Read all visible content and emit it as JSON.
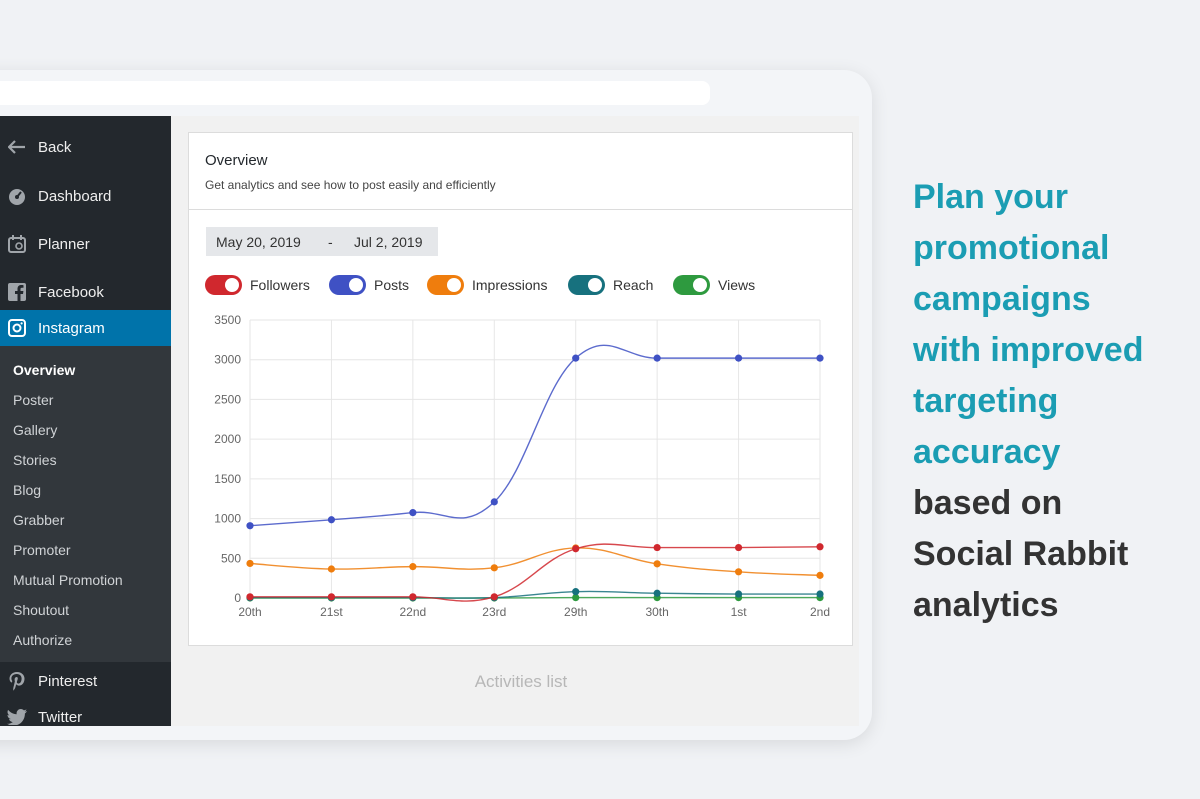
{
  "sidebar": {
    "back": "Back",
    "dashboard": "Dashboard",
    "planner": "Planner",
    "facebook": "Facebook",
    "instagram": "Instagram",
    "submenu": [
      "Overview",
      "Poster",
      "Gallery",
      "Stories",
      "Blog",
      "Grabber",
      "Promoter",
      "Mutual Promotion",
      "Shoutout",
      "Authorize"
    ],
    "pinterest": "Pinterest",
    "twitter": "Twitter"
  },
  "overview": {
    "title": "Overview",
    "subtitle": "Get analytics and see how to post easily and efficiently",
    "date_from": "May 20, 2019",
    "date_sep": "-",
    "date_to": "Jul 2, 2019"
  },
  "toggles": [
    {
      "label": "Followers",
      "color": "#d0282e",
      "on": true
    },
    {
      "label": "Posts",
      "color": "#3f51c4",
      "on": true
    },
    {
      "label": "Impressions",
      "color": "#ef7d0d",
      "on": true
    },
    {
      "label": "Reach",
      "color": "#17717e",
      "on": true
    },
    {
      "label": "Views",
      "color": "#2e9a3f",
      "on": true
    }
  ],
  "chart_data": {
    "type": "line",
    "x": [
      "20th",
      "21st",
      "22nd",
      "23rd",
      "29th",
      "30th",
      "1st",
      "2nd"
    ],
    "yticks": [
      0,
      500,
      1000,
      1500,
      2000,
      2500,
      3000,
      3500
    ],
    "ylim": [
      0,
      3500
    ],
    "grid": true,
    "series": [
      {
        "name": "Followers",
        "color": "#d0282e",
        "values": [
          15,
          15,
          15,
          15,
          620,
          635,
          635,
          645
        ]
      },
      {
        "name": "Posts",
        "color": "#3f51c4",
        "values": [
          910,
          985,
          1075,
          1210,
          3020,
          3020,
          3020,
          3020
        ]
      },
      {
        "name": "Impressions",
        "color": "#ef7d0d",
        "values": [
          435,
          365,
          395,
          380,
          630,
          430,
          330,
          285
        ]
      },
      {
        "name": "Reach",
        "color": "#17717e",
        "values": [
          5,
          5,
          5,
          5,
          80,
          60,
          50,
          50
        ]
      },
      {
        "name": "Views",
        "color": "#2e9a3f",
        "values": [
          0,
          0,
          0,
          0,
          5,
          5,
          5,
          5
        ]
      }
    ]
  },
  "activities_label": "Activities list",
  "promo": {
    "highlight": [
      "Plan your",
      "promotional",
      "campaigns",
      "with improved",
      "targeting",
      "accuracy"
    ],
    "rest": [
      "based on",
      "Social Rabbit",
      "analytics"
    ]
  }
}
